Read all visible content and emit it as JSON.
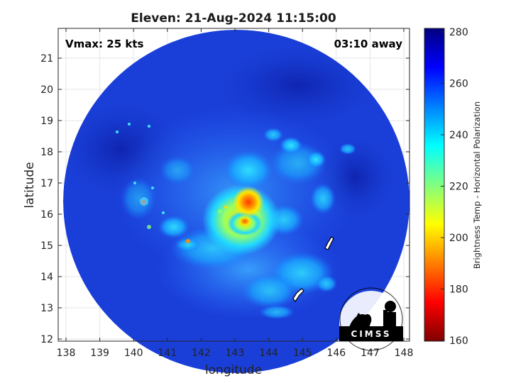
{
  "title": "Eleven: 21-Aug-2024 11:15:00",
  "xlabel": "longitude",
  "ylabel": "latitude",
  "vmax_text": "Vmax: 25 kts",
  "away_text": "03:10 away",
  "colorbar_label": "Brightness Temp - Horizontal Polarization",
  "logo_text": "CIMSS",
  "x_ticks": [
    "138",
    "139",
    "140",
    "141",
    "142",
    "143",
    "144",
    "145",
    "146",
    "147",
    "148"
  ],
  "y_ticks": [
    "21",
    "20",
    "19",
    "18",
    "17",
    "16",
    "15",
    "14",
    "13",
    "12"
  ],
  "colorbar_ticks": [
    "280",
    "260",
    "240",
    "220",
    "200",
    "180",
    "160"
  ],
  "colors": {
    "swath_background": "#1a3fd9",
    "colormap": [
      "#800000",
      "#ff0000",
      "#ff8000",
      "#ffff00",
      "#80ff80",
      "#00ffff",
      "#0080ff",
      "#0000ff",
      "#000080"
    ]
  }
}
